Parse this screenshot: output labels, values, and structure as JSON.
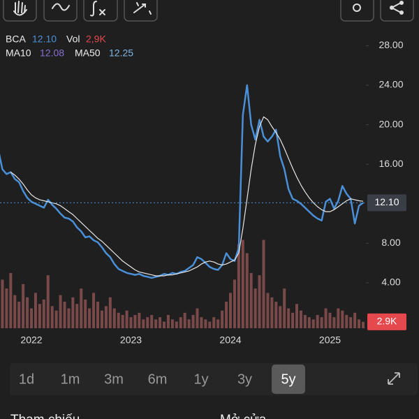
{
  "legend": {
    "volume_label": "2,9K",
    "ma10_name": "MA10",
    "ma10_value": "12.08",
    "ma50_value": "12.25"
  },
  "chart_data": {
    "type": "line",
    "categories": [
      null,
      null,
      null,
      null,
      null,
      null,
      null,
      null,
      "2022",
      null,
      null,
      null,
      null,
      null,
      null,
      null,
      null,
      null,
      null,
      null,
      null,
      null,
      null,
      null,
      null,
      null,
      null,
      null,
      null,
      null,
      null,
      null,
      "2023",
      null,
      null,
      null,
      null,
      null,
      null,
      null,
      null,
      null,
      null,
      null,
      null,
      null,
      null,
      null,
      null,
      null,
      null,
      null,
      null,
      null,
      null,
      null,
      "2024",
      null,
      null,
      null,
      null,
      null,
      null,
      null,
      null,
      null,
      null,
      null,
      null,
      null,
      null,
      null,
      null,
      null,
      null,
      null,
      null,
      null,
      null,
      null,
      "2025",
      null,
      null,
      null,
      null,
      null,
      null,
      null,
      null
    ],
    "series": [
      {
        "name": "BCA",
        "color": "#4a90d9",
        "values": [
          17.5,
          15.5,
          15.0,
          15.2,
          14.5,
          14.2,
          13.3,
          12.6,
          12.2,
          12.0,
          11.8,
          11.6,
          12.4,
          11.9,
          11.5,
          11.0,
          10.6,
          10.5,
          10.2,
          9.6,
          9.2,
          8.6,
          8.7,
          8.3,
          8.1,
          7.6,
          7.0,
          6.6,
          5.9,
          5.4,
          5.2,
          5.0,
          4.9,
          4.8,
          4.9,
          4.7,
          4.6,
          4.5,
          4.6,
          4.7,
          4.9,
          4.8,
          5.0,
          4.9,
          5.1,
          5.2,
          5.5,
          5.8,
          6.6,
          6.4,
          6.0,
          5.6,
          5.4,
          5.3,
          5.8,
          7.0,
          6.4,
          6.2,
          7.5,
          21.0,
          24.0,
          20.0,
          18.5,
          20.5,
          18.8,
          18.3,
          18.8,
          19.5,
          16.8,
          15.5,
          13.5,
          12.5,
          12.3,
          12.0,
          11.6,
          11.2,
          10.8,
          10.5,
          10.3,
          12.2,
          12.5,
          11.5,
          12.3,
          13.8,
          13.0,
          12.5,
          10.0,
          11.8,
          12.1
        ]
      },
      {
        "name": "MA50",
        "color": "#e8e8e8",
        "values": [
          null,
          null,
          null,
          15.2,
          14.9,
          14.5,
          14.0,
          13.4,
          12.9,
          12.6,
          12.4,
          12.3,
          12.2,
          12.1,
          12.0,
          11.8,
          11.5,
          11.2,
          10.9,
          10.5,
          10.1,
          9.7,
          9.3,
          8.9,
          8.5,
          8.2,
          7.8,
          7.4,
          7.0,
          6.6,
          6.2,
          5.9,
          5.6,
          5.3,
          5.1,
          5.0,
          4.9,
          4.8,
          4.7,
          4.7,
          4.7,
          4.8,
          4.8,
          4.9,
          5.0,
          5.1,
          5.2,
          5.4,
          5.6,
          5.9,
          6.1,
          6.2,
          6.1,
          5.9,
          5.8,
          5.9,
          6.1,
          6.3,
          7.0,
          9.5,
          12.5,
          15.5,
          18.0,
          19.8,
          20.8,
          20.5,
          19.8,
          19.2,
          18.5,
          17.6,
          16.6,
          15.6,
          14.7,
          13.9,
          13.2,
          12.6,
          12.1,
          11.7,
          11.4,
          11.2,
          11.2,
          11.4,
          11.7,
          12.0,
          12.3,
          12.5,
          12.4,
          12.3,
          12.25
        ]
      },
      {
        "name": "Vol",
        "type": "bar",
        "axis": "y2",
        "color": "#7a4a4a",
        "values": [
          30000,
          22000,
          18000,
          25000,
          15000,
          12000,
          20000,
          14000,
          9000,
          16000,
          11000,
          13000,
          24000,
          10000,
          8000,
          15000,
          12000,
          9000,
          14000,
          11000,
          18000,
          13000,
          9000,
          16000,
          12000,
          8000,
          10000,
          14000,
          9000,
          7000,
          6000,
          8000,
          5000,
          6000,
          7000,
          4000,
          5000,
          6000,
          4000,
          5000,
          3000,
          6000,
          4000,
          3000,
          5000,
          7000,
          4000,
          6000,
          9000,
          5000,
          4000,
          3000,
          5000,
          4000,
          8000,
          12000,
          16000,
          22000,
          38000,
          40000,
          34000,
          25000,
          18000,
          24000,
          40000,
          16000,
          14000,
          12000,
          10000,
          18000,
          9000,
          7000,
          11000,
          8000,
          6000,
          5000,
          4000,
          6000,
          5000,
          9000,
          7000,
          5000,
          9000,
          8000,
          6000,
          5000,
          7000,
          4000,
          2900
        ]
      }
    ],
    "ylim": [
      -0.6,
      29.8
    ],
    "yticks": [
      {
        "value": 28,
        "label": "28.00"
      },
      {
        "value": 24,
        "label": "24.00"
      },
      {
        "value": 20,
        "label": "20.00"
      },
      {
        "value": 16,
        "label": "16.00"
      },
      {
        "value": 8,
        "label": "8.00"
      },
      {
        "value": 4,
        "label": "4.00"
      }
    ],
    "y2lim": [
      0,
      136000
    ],
    "grid": false,
    "last_price": {
      "value": 12.1,
      "label": "12.10"
    },
    "last_volume": {
      "value": 2900,
      "label": "2.9K"
    }
  },
  "timeframes": [
    "1d",
    "1m",
    "3m",
    "6m",
    "1y",
    "3y",
    "5y"
  ],
  "selected_timeframe": 6,
  "quote_labels": [
    "Tham chiếu",
    "Mở cửa"
  ]
}
